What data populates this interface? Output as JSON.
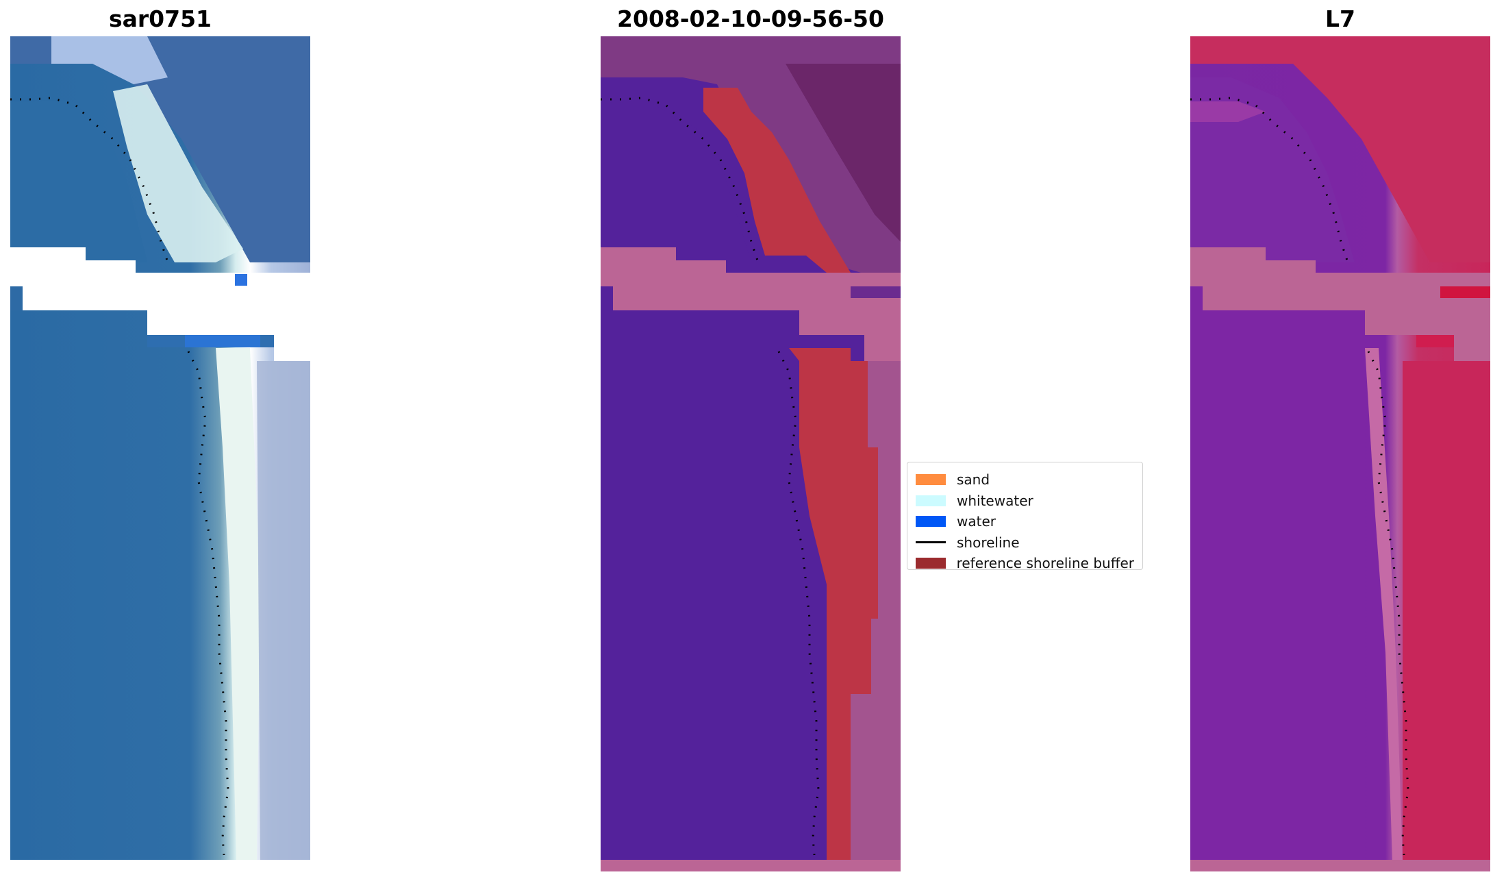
{
  "panels": [
    {
      "id": "rgb",
      "title": "sar0751"
    },
    {
      "id": "classified",
      "title": "2008-02-10-09-56-50"
    },
    {
      "id": "mndwi",
      "title": "L7"
    }
  ],
  "legend": {
    "items": [
      {
        "label": "sand",
        "color": "#ff8c3f",
        "kind": "patch"
      },
      {
        "label": "whitewater",
        "color": "#ccfbff",
        "kind": "patch"
      },
      {
        "label": "water",
        "color": "#0057f6",
        "kind": "patch"
      },
      {
        "label": "shoreline",
        "color": "#000000",
        "kind": "line"
      },
      {
        "label": "reference shoreline buffer",
        "color": "#9b2b2e",
        "kind": "patch"
      }
    ]
  },
  "colors": {
    "rgb_water": "#2a6aa4",
    "rgb_whitewater": "#e8f4f2",
    "classified_water": "#54229b",
    "classified_land": "#7a2f7e",
    "buffer_overlay": "#bd3546",
    "cloud_mask": "#bb6595",
    "mndwi_water": "#7d26a4",
    "mndwi_land": "#c8265a"
  }
}
